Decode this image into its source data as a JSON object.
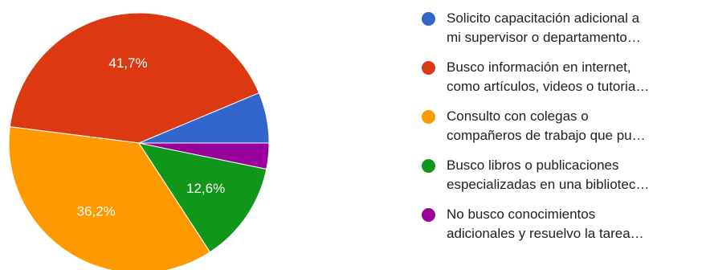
{
  "chart_data": {
    "type": "pie",
    "start_angle_deg": 0,
    "direction": "counterclockwise",
    "slices": [
      {
        "name_lines": [
          "Solicito capacitación adicional a",
          "mi supervisor o departamento…"
        ],
        "value": 6.3,
        "label": "",
        "color": "#3366cc"
      },
      {
        "name_lines": [
          "Busco información en internet,",
          "como artículos, videos o tutoria…"
        ],
        "value": 41.7,
        "label": "41,7%",
        "color": "#dc3912"
      },
      {
        "name_lines": [
          "Consulto con colegas o",
          "compañeros de trabajo que pu…"
        ],
        "value": 36.2,
        "label": "36,2%",
        "color": "#ff9900"
      },
      {
        "name_lines": [
          "Busco libros o publicaciones",
          "especializadas en una bibliotec…"
        ],
        "value": 12.6,
        "label": "12,6%",
        "color": "#109618"
      },
      {
        "name_lines": [
          "No busco conocimientos",
          "adicionales y resuelvo la tarea…"
        ],
        "value": 3.2,
        "label": "",
        "color": "#990099"
      }
    ],
    "legend_position": "right"
  }
}
